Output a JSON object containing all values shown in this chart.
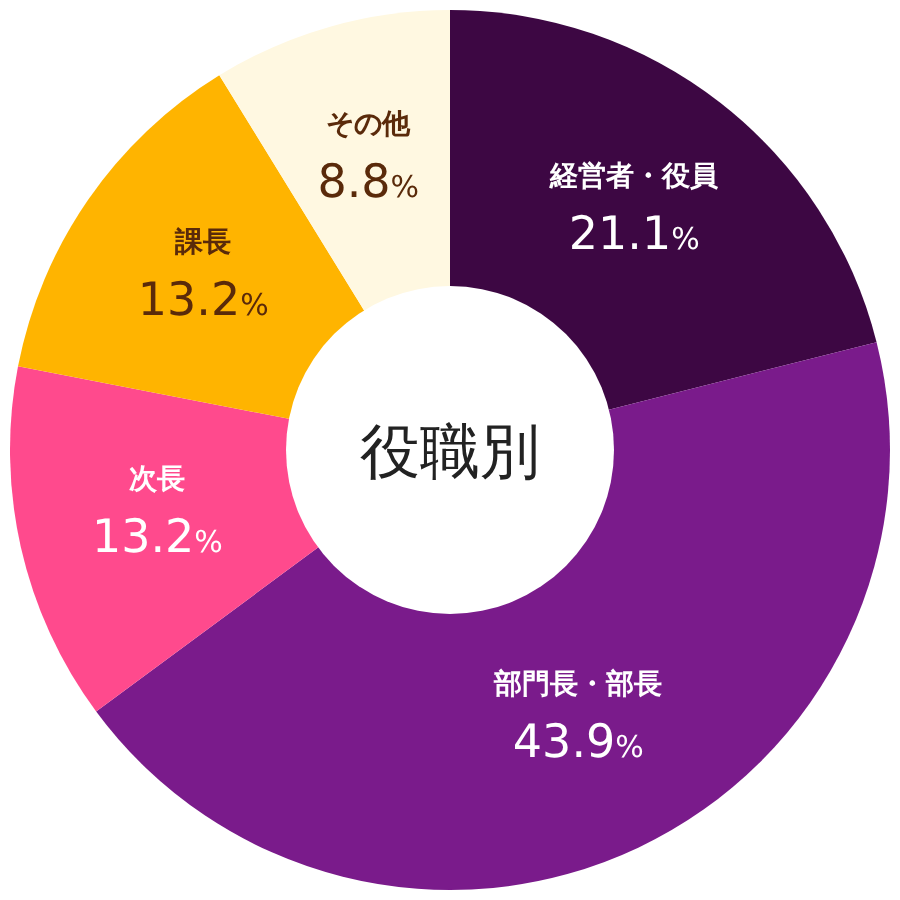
{
  "chart_data": {
    "type": "donut",
    "title": "役職別",
    "categories": [
      "経営者・役員",
      "部門長・部長",
      "次長",
      "課長",
      "その他"
    ],
    "values": [
      21.1,
      43.9,
      13.2,
      13.2,
      8.8
    ],
    "value_labels": [
      "21.1%",
      "43.9%",
      "13.2%",
      "13.2%",
      "8.8%"
    ],
    "colors": [
      "#3d0743",
      "#7a1b8b",
      "#ff4a8d",
      "#ffb400",
      "#fff8e1"
    ]
  }
}
